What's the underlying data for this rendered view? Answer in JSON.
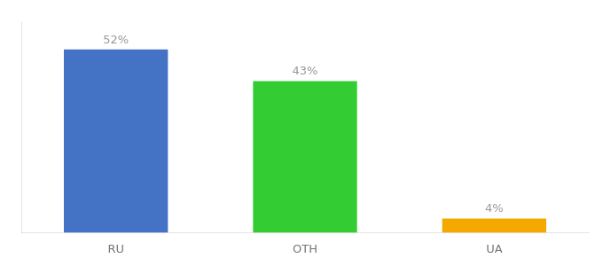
{
  "chart_data": {
    "type": "bar",
    "categories": [
      "RU",
      "OTH",
      "UA"
    ],
    "values": [
      52,
      43,
      4
    ],
    "value_labels": [
      "52%",
      "43%",
      "4%"
    ],
    "colors": [
      "#4472c4",
      "#33cc33",
      "#f5a800"
    ],
    "ylim": [
      0,
      60
    ],
    "grid": false,
    "data_labels": true,
    "tick_labels": "x"
  }
}
